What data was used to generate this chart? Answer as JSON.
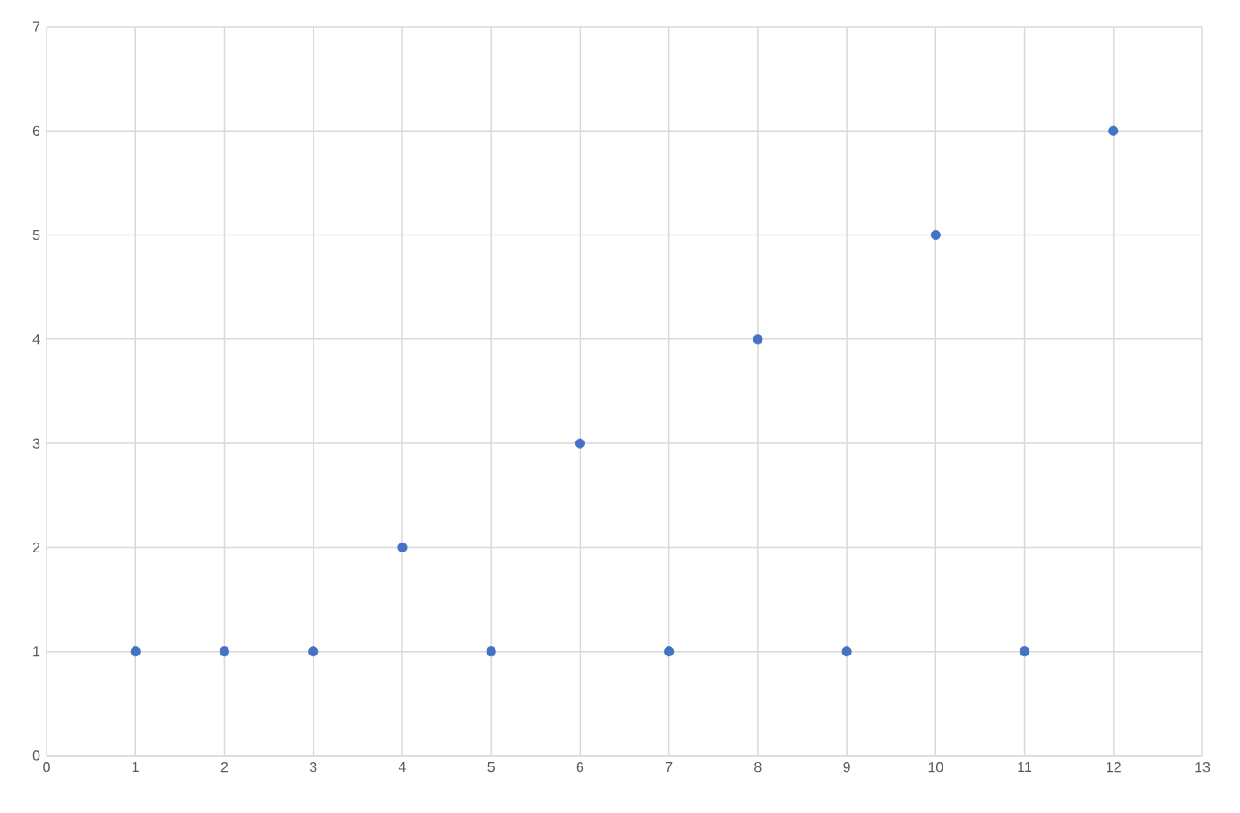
{
  "chart_data": {
    "type": "scatter",
    "x": [
      1,
      2,
      3,
      4,
      5,
      6,
      7,
      8,
      9,
      10,
      11,
      12
    ],
    "series": [
      {
        "color": "#4472c4",
        "values": [
          1,
          1,
          1,
          2,
          1,
          3,
          1,
          4,
          1,
          5,
          1,
          6
        ]
      }
    ],
    "xlim": [
      0,
      13
    ],
    "ylim": [
      0,
      7
    ],
    "xticks": [
      0,
      1,
      2,
      3,
      4,
      5,
      6,
      7,
      8,
      9,
      10,
      11,
      12,
      13
    ],
    "yticks": [
      0,
      1,
      2,
      3,
      4,
      5,
      6,
      7
    ],
    "grid": true
  }
}
